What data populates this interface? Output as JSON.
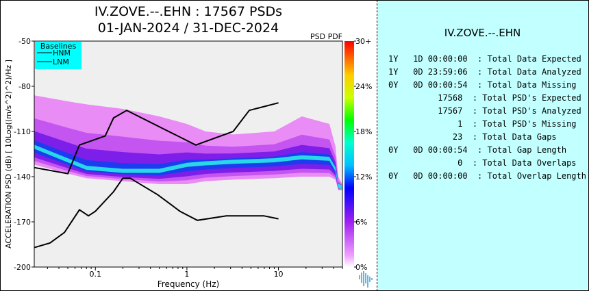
{
  "header": {
    "title_line1": "IV.ZOVE.--.EHN : 17567 PSDs",
    "title_line2": "01-JAN-2024 / 31-DEC-2024"
  },
  "chart_data": {
    "type": "heatmap",
    "subtitle": "PSD PDF",
    "xlabel": "Frequency (Hz)",
    "ylabel": "ACCELERATION PSD (dB) [ 10Log((m/s^2)^2)/Hz ]",
    "xscale": "log",
    "xlim": [
      0.0215,
      50
    ],
    "ylim": [
      -200,
      -50
    ],
    "xticks": [
      {
        "v": 0.1,
        "label": "0.1"
      },
      {
        "v": 1,
        "label": "1"
      },
      {
        "v": 10,
        "label": "10"
      }
    ],
    "yticks": [
      -50,
      -80,
      -110,
      -140,
      -170,
      -200
    ],
    "colorbar": {
      "labels": [
        "0%",
        "6%",
        "12%",
        "18%",
        "24%",
        "30+"
      ],
      "range": [
        0,
        30
      ]
    },
    "legend": {
      "title": "Baselines",
      "entries": [
        "HNM",
        "LNM"
      ],
      "placement": "top-left"
    },
    "series": [
      {
        "name": "HNM",
        "x": [
          0.0217,
          0.05,
          0.067,
          0.128,
          0.158,
          0.22,
          1.25,
          3.2,
          4.8,
          10
        ],
        "y": [
          -134,
          -138,
          -119,
          -113,
          -101,
          -96,
          -119,
          -110,
          -96,
          -91
        ]
      },
      {
        "name": "LNM",
        "x": [
          0.0217,
          0.032,
          0.046,
          0.067,
          0.084,
          0.1,
          0.158,
          0.2,
          0.24,
          0.48,
          0.84,
          1.3,
          2.7,
          6.9,
          10
        ],
        "y": [
          -187,
          -184,
          -177,
          -162,
          -166,
          -163,
          -150,
          -141,
          -141,
          -152,
          -163,
          -169,
          -166,
          -166,
          -168
        ]
      }
    ],
    "pdf_profile": {
      "x": [
        0.0215,
        0.05,
        0.08,
        0.2,
        0.5,
        1,
        1.6,
        3.2,
        9,
        18,
        36,
        42,
        45,
        50
      ],
      "mode": [
        -120,
        -129,
        -134,
        -136,
        -136,
        -132,
        -131,
        -130,
        -129,
        -127,
        -128,
        -135,
        -146,
        -147
      ],
      "upper": [
        -86,
        -90,
        -92,
        -95,
        -100,
        -105,
        -110,
        -112,
        -110,
        -100,
        -105,
        -120,
        -140,
        -145
      ],
      "lower": [
        -132,
        -138,
        -141,
        -143,
        -145,
        -145,
        -143,
        -142,
        -141,
        -140,
        -140,
        -142,
        -149,
        -149
      ]
    }
  },
  "stats": {
    "title": "IV.ZOVE.--.EHN",
    "rows": [
      "1Y   1D 00:00:00  : Total Data Expected",
      "1Y   0D 23:59:06  : Total Data Analyzed",
      "0Y   0D 00:00:54  : Total Data Missing",
      "          17568  : Total PSD's Expected",
      "          17567  : Total PSD's Analyzed",
      "              1  : Total PSD's Missing",
      "             23  : Total Data Gaps",
      "0Y   0D 00:00:54  : Total Gap Length",
      "              0  : Total Data Overlaps",
      "0Y   0D 00:00:00  : Total Overlap Length"
    ]
  }
}
